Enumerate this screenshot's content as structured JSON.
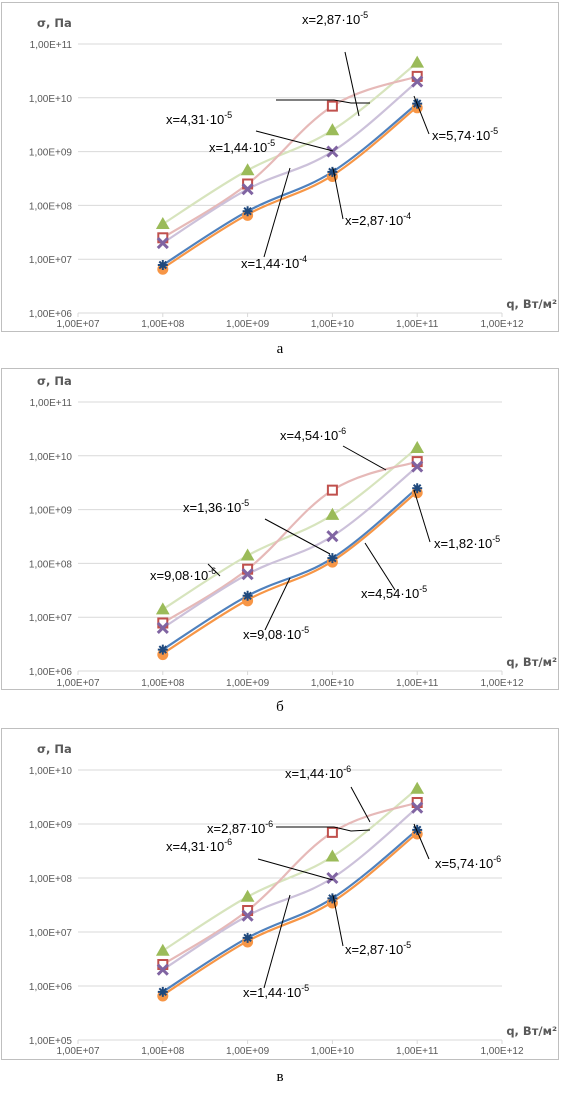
{
  "colors": {
    "red": "#C0504D",
    "red_line": "#E6B9B8",
    "green": "#9BBB59",
    "green_line": "#D7E4BD",
    "purple": "#8064A2",
    "purple_line": "#CCC1DA",
    "blue": "#4F81BD",
    "orange": "#F79646",
    "dark_marker": "#1F497D",
    "grid": "#D9D9D9",
    "frame": "#BFBFBF"
  },
  "chart_data": [
    {
      "type": "line",
      "caption": "а",
      "ylabel": "σ, Па",
      "xlabel": "q, Вт/м²",
      "x_scale": "log",
      "y_scale": "log",
      "grid": true,
      "x_ticks": [
        "1,00E+07",
        "1,00E+08",
        "1,00E+09",
        "1,00E+10",
        "1,00E+11",
        "1,00E+12"
      ],
      "y_ticks": [
        "1,00E+06",
        "1,00E+07",
        "1,00E+08",
        "1,00E+09",
        "1,00E+10",
        "1,00E+11"
      ],
      "xlim": [
        10000000,
        1000000000000
      ],
      "ylim": [
        1000000,
        100000000000
      ],
      "x": [
        100000000,
        1000000000,
        10000000000,
        100000000000
      ],
      "series": [
        {
          "marker": "square",
          "color_key": "red",
          "values": [
            25000000,
            250000000,
            7000000000,
            25000000000
          ]
        },
        {
          "marker": "triangle",
          "color_key": "green",
          "values": [
            45000000,
            450000000,
            2500000000,
            45000000000
          ]
        },
        {
          "marker": "x",
          "color_key": "purple",
          "values": [
            20000000,
            200000000,
            1000000000,
            20000000000
          ]
        },
        {
          "marker": "star",
          "color_key": "blue",
          "values": [
            7800000,
            78000000,
            420000000,
            7800000000
          ]
        },
        {
          "marker": "circle",
          "color_key": "orange",
          "values": [
            6800000,
            68000000,
            360000000,
            6800000000
          ]
        }
      ],
      "annotations": [
        {
          "base": "x=1,44·10",
          "exp": "-5"
        },
        {
          "base": "x=2,87·10",
          "exp": "-5"
        },
        {
          "base": "x=4,31·10",
          "exp": "-5"
        },
        {
          "base": "x=5,74·10",
          "exp": "-5"
        },
        {
          "base": "x=2,87·10",
          "exp": "-4"
        },
        {
          "base": "x=1,44·10",
          "exp": "-4"
        }
      ]
    },
    {
      "type": "line",
      "caption": "б",
      "ylabel": "σ, Па",
      "xlabel": "q, Вт/м²",
      "x_scale": "log",
      "y_scale": "log",
      "grid": true,
      "x_ticks": [
        "1,00E+07",
        "1,00E+08",
        "1,00E+09",
        "1,00E+10",
        "1,00E+11",
        "1,00E+12"
      ],
      "y_ticks": [
        "1,00E+06",
        "1,00E+07",
        "1,00E+08",
        "1,00E+09",
        "1,00E+10",
        "1,00E+11"
      ],
      "xlim": [
        10000000,
        1000000000000
      ],
      "ylim": [
        1000000,
        100000000000
      ],
      "x": [
        100000000,
        1000000000,
        10000000000,
        100000000000
      ],
      "series": [
        {
          "marker": "square",
          "color_key": "red",
          "values": [
            7800000,
            78000000,
            2300000000,
            7800000000
          ]
        },
        {
          "marker": "triangle",
          "color_key": "green",
          "values": [
            14000000,
            140000000,
            800000000,
            14000000000
          ]
        },
        {
          "marker": "x",
          "color_key": "purple",
          "values": [
            6300000,
            63000000,
            320000000,
            6300000000
          ]
        },
        {
          "marker": "star",
          "color_key": "blue",
          "values": [
            2500000,
            25000000,
            125000000,
            2500000000
          ]
        },
        {
          "marker": "circle",
          "color_key": "orange",
          "values": [
            2100000,
            21000000,
            110000000,
            2150000000
          ]
        }
      ],
      "annotations": [
        {
          "base": "x=4,54·10",
          "exp": "-6"
        },
        {
          "base": "x=1,36·10",
          "exp": "-5"
        },
        {
          "base": "x=9,08·10",
          "exp": "-6"
        },
        {
          "base": "x=1,82·10",
          "exp": "-5"
        },
        {
          "base": "x=4,54·10",
          "exp": "-5"
        },
        {
          "base": "x=9,08·10",
          "exp": "-5"
        }
      ]
    },
    {
      "type": "line",
      "caption": "в",
      "ylabel": "σ, Па",
      "xlabel": "q, Вт/м²",
      "x_scale": "log",
      "y_scale": "log",
      "grid": true,
      "x_ticks": [
        "1,00E+07",
        "1,00E+08",
        "1,00E+09",
        "1,00E+10",
        "1,00E+11",
        "1,00E+12"
      ],
      "y_ticks": [
        "1,00E+05",
        "1,00E+06",
        "1,00E+07",
        "1,00E+08",
        "1,00E+09",
        "1,00E+10"
      ],
      "xlim": [
        10000000,
        1000000000000
      ],
      "ylim": [
        100000,
        10000000000
      ],
      "x": [
        100000000,
        1000000000,
        10000000000,
        100000000000
      ],
      "series": [
        {
          "marker": "square",
          "color_key": "red",
          "values": [
            2500000,
            25000000,
            700000000,
            2500000000
          ]
        },
        {
          "marker": "triangle",
          "color_key": "green",
          "values": [
            4500000,
            45000000,
            250000000,
            4500000000
          ]
        },
        {
          "marker": "x",
          "color_key": "purple",
          "values": [
            2000000,
            20000000,
            100000000,
            2000000000
          ]
        },
        {
          "marker": "star",
          "color_key": "blue",
          "values": [
            780000,
            7800000,
            42000000,
            780000000
          ]
        },
        {
          "marker": "circle",
          "color_key": "orange",
          "values": [
            680000,
            6800000,
            36000000,
            680000000
          ]
        }
      ],
      "annotations": [
        {
          "base": "x=1,44·10",
          "exp": "-6"
        },
        {
          "base": "x=2,87·10",
          "exp": "-6"
        },
        {
          "base": "x=4,31·10",
          "exp": "-6"
        },
        {
          "base": "x=5,74·10",
          "exp": "-6"
        },
        {
          "base": "x=2,87·10",
          "exp": "-5"
        },
        {
          "base": "x=1,44·10",
          "exp": "-5"
        }
      ]
    }
  ]
}
